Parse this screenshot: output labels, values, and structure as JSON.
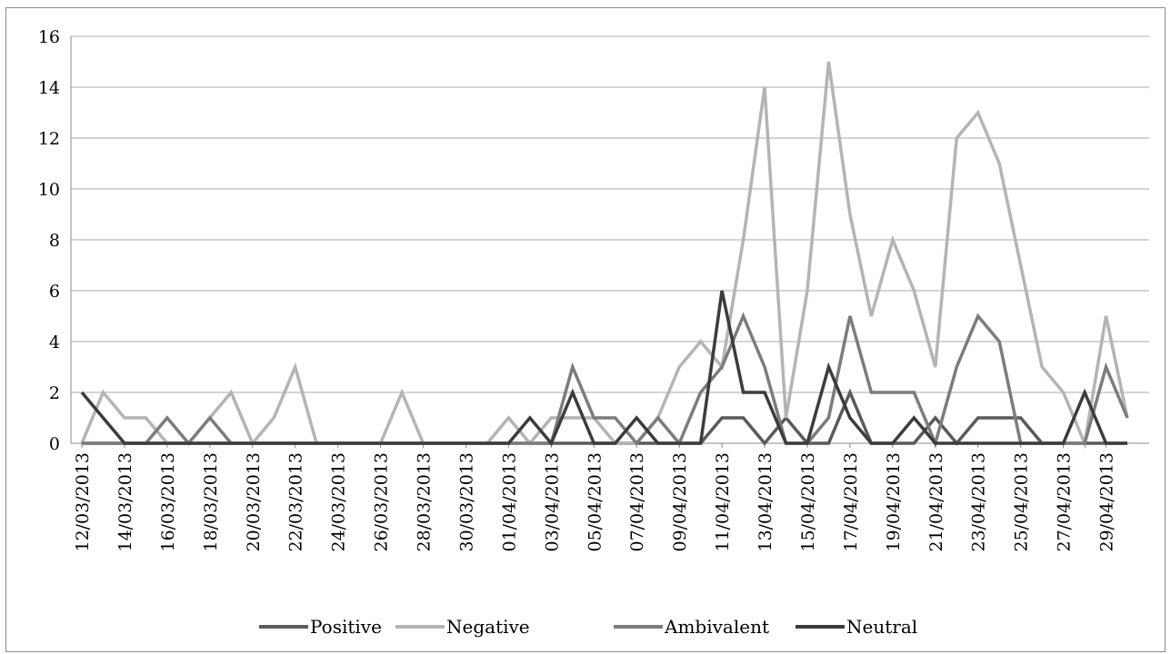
{
  "chart_data": {
    "type": "line",
    "title": "",
    "xlabel": "",
    "ylabel": "",
    "ylim": [
      0,
      16
    ],
    "yticks": [
      0,
      2,
      4,
      6,
      8,
      10,
      12,
      14,
      16
    ],
    "grid": "horizontal",
    "legend_position": "bottom",
    "x": [
      "12/03/2013",
      "13/03/2013",
      "14/03/2013",
      "15/03/2013",
      "16/03/2013",
      "17/03/2013",
      "18/03/2013",
      "19/03/2013",
      "20/03/2013",
      "21/03/2013",
      "22/03/2013",
      "23/03/2013",
      "24/03/2013",
      "25/03/2013",
      "26/03/2013",
      "27/03/2013",
      "28/03/2013",
      "29/03/2013",
      "30/03/2013",
      "31/03/2013",
      "01/04/2013",
      "02/04/2013",
      "03/04/2013",
      "04/04/2013",
      "05/04/2013",
      "06/04/2013",
      "07/04/2013",
      "08/04/2013",
      "09/04/2013",
      "10/04/2013",
      "11/04/2013",
      "12/04/2013",
      "13/04/2013",
      "14/04/2013",
      "15/04/2013",
      "16/04/2013",
      "17/04/2013",
      "18/04/2013",
      "19/04/2013",
      "20/04/2013",
      "21/04/2013",
      "22/04/2013",
      "23/04/2013",
      "24/04/2013",
      "25/04/2013",
      "26/04/2013",
      "27/04/2013",
      "28/04/2013",
      "29/04/2013",
      "30/04/2013"
    ],
    "x_tick_labels": [
      "12/03/2013",
      "14/03/2013",
      "16/03/2013",
      "18/03/2013",
      "20/03/2013",
      "22/03/2013",
      "24/03/2013",
      "26/03/2013",
      "28/03/2013",
      "30/03/2013",
      "01/04/2013",
      "03/04/2013",
      "05/04/2013",
      "07/04/2013",
      "09/04/2013",
      "11/04/2013",
      "13/04/2013",
      "15/04/2013",
      "17/04/2013",
      "19/04/2013",
      "21/04/2013",
      "23/04/2013",
      "25/04/2013",
      "27/04/2013",
      "29/04/2013"
    ],
    "series": [
      {
        "name": "Positive",
        "color": "#5a5a5a",
        "values": [
          0,
          0,
          0,
          0,
          0,
          0,
          0,
          0,
          0,
          0,
          0,
          0,
          0,
          0,
          0,
          0,
          0,
          0,
          0,
          0,
          0,
          0,
          0,
          0,
          0,
          0,
          0,
          0,
          0,
          0,
          1,
          1,
          0,
          1,
          0,
          0,
          2,
          0,
          0,
          0,
          1,
          0,
          1,
          1,
          1,
          0,
          0,
          0,
          0,
          0
        ]
      },
      {
        "name": "Negative",
        "color": "#b4b4b4",
        "values": [
          0,
          2,
          1,
          1,
          0,
          0,
          1,
          2,
          0,
          1,
          3,
          0,
          0,
          0,
          0,
          2,
          0,
          0,
          0,
          0,
          1,
          0,
          1,
          1,
          1,
          0,
          0,
          1,
          3,
          4,
          3,
          8,
          14,
          1,
          6,
          15,
          9,
          5,
          8,
          6,
          3,
          12,
          13,
          11,
          7,
          3,
          2,
          0,
          5,
          1
        ]
      },
      {
        "name": "Ambivalent",
        "color": "#7c7c7c",
        "values": [
          0,
          0,
          0,
          0,
          1,
          0,
          1,
          0,
          0,
          0,
          0,
          0,
          0,
          0,
          0,
          0,
          0,
          0,
          0,
          0,
          0,
          0,
          0,
          3,
          1,
          1,
          0,
          1,
          0,
          2,
          3,
          5,
          3,
          0,
          0,
          1,
          5,
          2,
          2,
          2,
          0,
          3,
          5,
          4,
          0,
          0,
          0,
          0,
          3,
          1
        ]
      },
      {
        "name": "Neutral",
        "color": "#3c3c3c",
        "values": [
          2,
          1,
          0,
          0,
          0,
          0,
          0,
          0,
          0,
          0,
          0,
          0,
          0,
          0,
          0,
          0,
          0,
          0,
          0,
          0,
          0,
          1,
          0,
          2,
          0,
          0,
          1,
          0,
          0,
          0,
          6,
          2,
          2,
          0,
          0,
          3,
          1,
          0,
          0,
          1,
          0,
          0,
          0,
          0,
          0,
          0,
          0,
          2,
          0,
          0
        ]
      }
    ]
  }
}
